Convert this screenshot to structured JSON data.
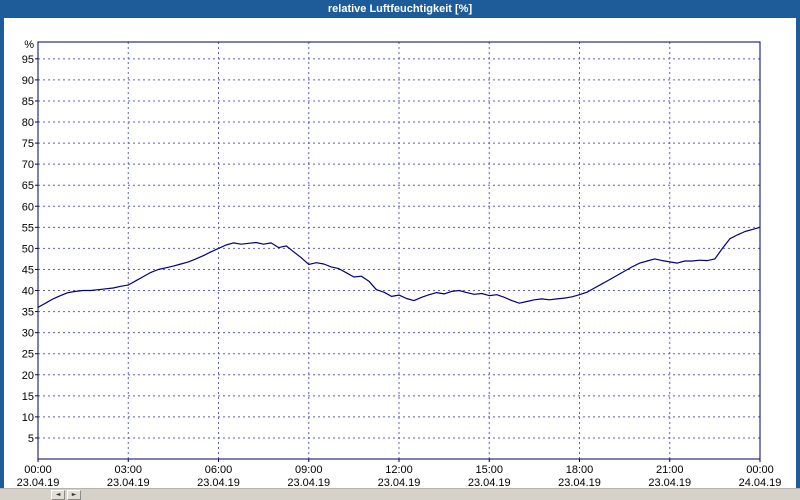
{
  "window": {
    "title": "relative Luftfeuchtigkeit [%]"
  },
  "colors": {
    "titlebar": "#1d5b99",
    "titlebar_text": "#ffffff",
    "frame": "#1d5b99",
    "line": "#000080",
    "grid": "#5f5fc0",
    "axis": "#000066",
    "scrollbar": "#d6d2ca"
  },
  "scrollbar": {
    "left_glyph": "◄",
    "right_glyph": "►"
  },
  "chart_data": {
    "type": "line",
    "title": "relative Luftfeuchtigkeit [%]",
    "xlabel": "",
    "ylabel": "%",
    "ylim": [
      0,
      99
    ],
    "yticks": {
      "min": 5,
      "max": 95,
      "step": 5
    },
    "xlim_hours": [
      0,
      24
    ],
    "grid": true,
    "legend": "none",
    "xticks": [
      {
        "hours": 0,
        "time": "00:00",
        "date": "23.04.19"
      },
      {
        "hours": 3,
        "time": "03:00",
        "date": "23.04.19"
      },
      {
        "hours": 6,
        "time": "06:00",
        "date": "23.04.19"
      },
      {
        "hours": 9,
        "time": "09:00",
        "date": "23.04.19"
      },
      {
        "hours": 12,
        "time": "12:00",
        "date": "23.04.19"
      },
      {
        "hours": 15,
        "time": "15:00",
        "date": "23.04.19"
      },
      {
        "hours": 18,
        "time": "18:00",
        "date": "23.04.19"
      },
      {
        "hours": 21,
        "time": "21:00",
        "date": "23.04.19"
      },
      {
        "hours": 24,
        "time": "00:00",
        "date": "24.04.19"
      }
    ],
    "series": [
      {
        "name": "relative Luftfeuchtigkeit",
        "x_start_hours": 0,
        "x_step_hours": 0.25,
        "values": [
          36,
          37,
          38,
          38.8,
          39.5,
          39.8,
          40,
          40,
          40.2,
          40.4,
          40.6,
          41,
          41.3,
          42.3,
          43.3,
          44.3,
          45,
          45.4,
          45.8,
          46.3,
          46.8,
          47.5,
          48.3,
          49.2,
          50,
          50.8,
          51.3,
          51,
          51.2,
          51.4,
          51,
          51.3,
          50.2,
          50.6,
          49.2,
          47.8,
          46.2,
          46.6,
          46.3,
          45.6,
          45.2,
          44.2,
          43.2,
          43.4,
          42.2,
          40.2,
          39.6,
          38.6,
          38.9,
          38.1,
          37.6,
          38.4,
          39,
          39.5,
          39.2,
          39.8,
          40,
          39.5,
          39.1,
          39.3,
          38.8,
          39,
          38.4,
          37.6,
          37,
          37.4,
          37.8,
          38,
          37.8,
          38,
          38.2,
          38.5,
          39,
          39.6,
          40.6,
          41.6,
          42.6,
          43.6,
          44.6,
          45.6,
          46.5,
          47,
          47.5,
          47.1,
          46.8,
          46.5,
          47,
          47,
          47.2,
          47.1,
          47.5,
          50,
          52.3,
          53.2,
          54,
          54.5,
          55
        ]
      }
    ]
  }
}
